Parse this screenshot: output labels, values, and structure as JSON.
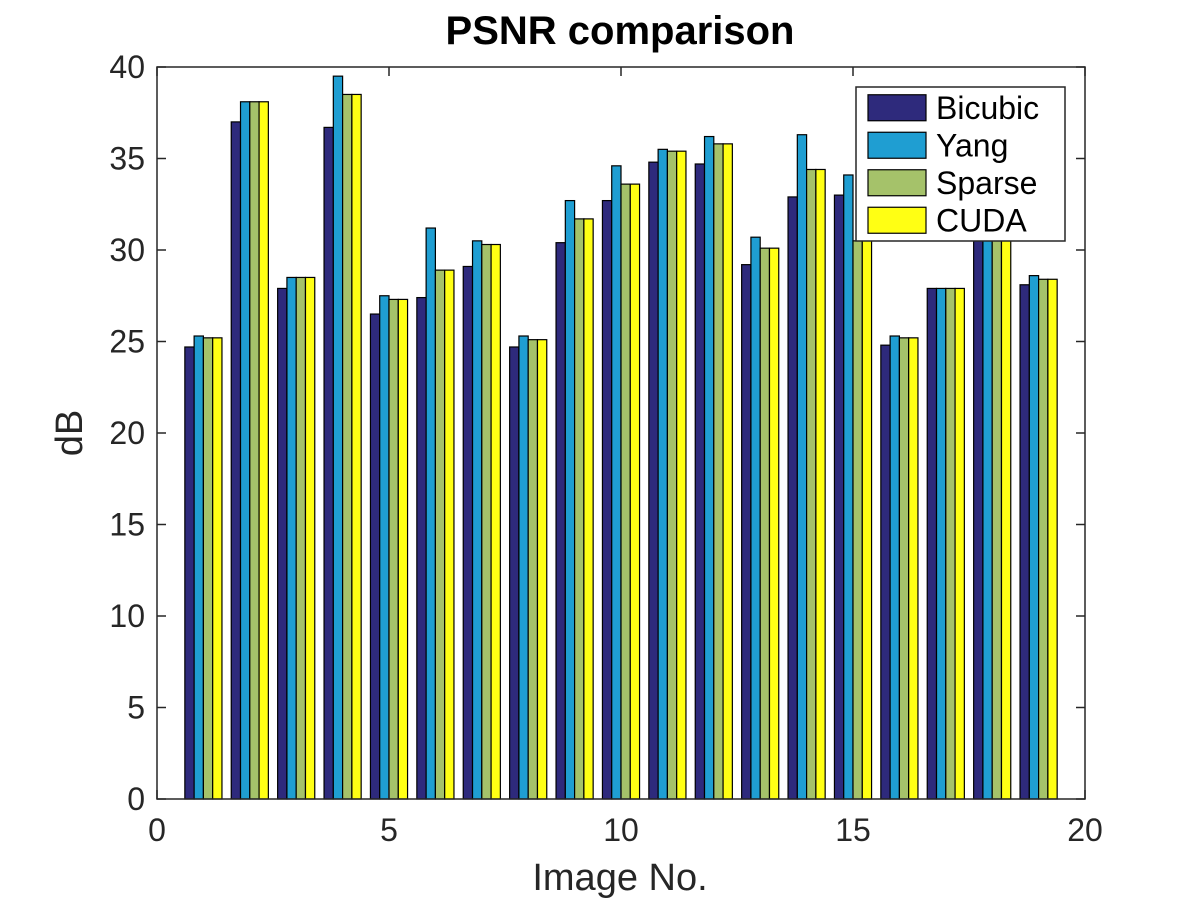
{
  "chart_data": {
    "type": "bar",
    "title": "PSNR comparison",
    "xlabel": "Image No.",
    "ylabel": "dB",
    "xlim": [
      0,
      20
    ],
    "ylim": [
      0,
      40
    ],
    "xticks": [
      0,
      5,
      10,
      15,
      20
    ],
    "yticks": [
      0,
      5,
      10,
      15,
      20,
      25,
      30,
      35,
      40
    ],
    "legend_position": "top-right",
    "grid": false,
    "x": [
      1,
      2,
      3,
      4,
      5,
      6,
      7,
      8,
      9,
      10,
      11,
      12,
      13,
      14,
      15,
      16,
      17,
      18,
      19
    ],
    "series": [
      {
        "name": "Bicubic",
        "color": "#2e2a7c",
        "values": [
          24.7,
          37.0,
          27.9,
          36.7,
          26.5,
          27.4,
          29.1,
          24.7,
          30.4,
          32.7,
          34.8,
          34.7,
          29.2,
          32.9,
          33.0,
          24.8,
          27.9,
          30.8,
          28.1
        ]
      },
      {
        "name": "Yang",
        "color": "#1f9ed2",
        "values": [
          25.3,
          38.1,
          28.5,
          39.5,
          27.5,
          31.2,
          30.5,
          25.3,
          32.7,
          34.6,
          35.5,
          36.2,
          30.7,
          36.3,
          34.1,
          25.3,
          27.9,
          31.2,
          28.6
        ]
      },
      {
        "name": "Sparse",
        "color": "#a5c26a",
        "values": [
          25.2,
          38.1,
          28.5,
          38.5,
          27.3,
          28.9,
          30.3,
          25.1,
          31.7,
          33.6,
          35.4,
          35.8,
          30.1,
          34.4,
          30.5,
          25.2,
          27.9,
          30.7,
          28.4
        ]
      },
      {
        "name": "CUDA",
        "color": "#ffff14",
        "values": [
          25.2,
          38.1,
          28.5,
          38.5,
          27.3,
          28.9,
          30.3,
          25.1,
          31.7,
          33.6,
          35.4,
          35.8,
          30.1,
          34.4,
          30.5,
          25.2,
          27.9,
          30.7,
          28.4
        ]
      }
    ]
  }
}
